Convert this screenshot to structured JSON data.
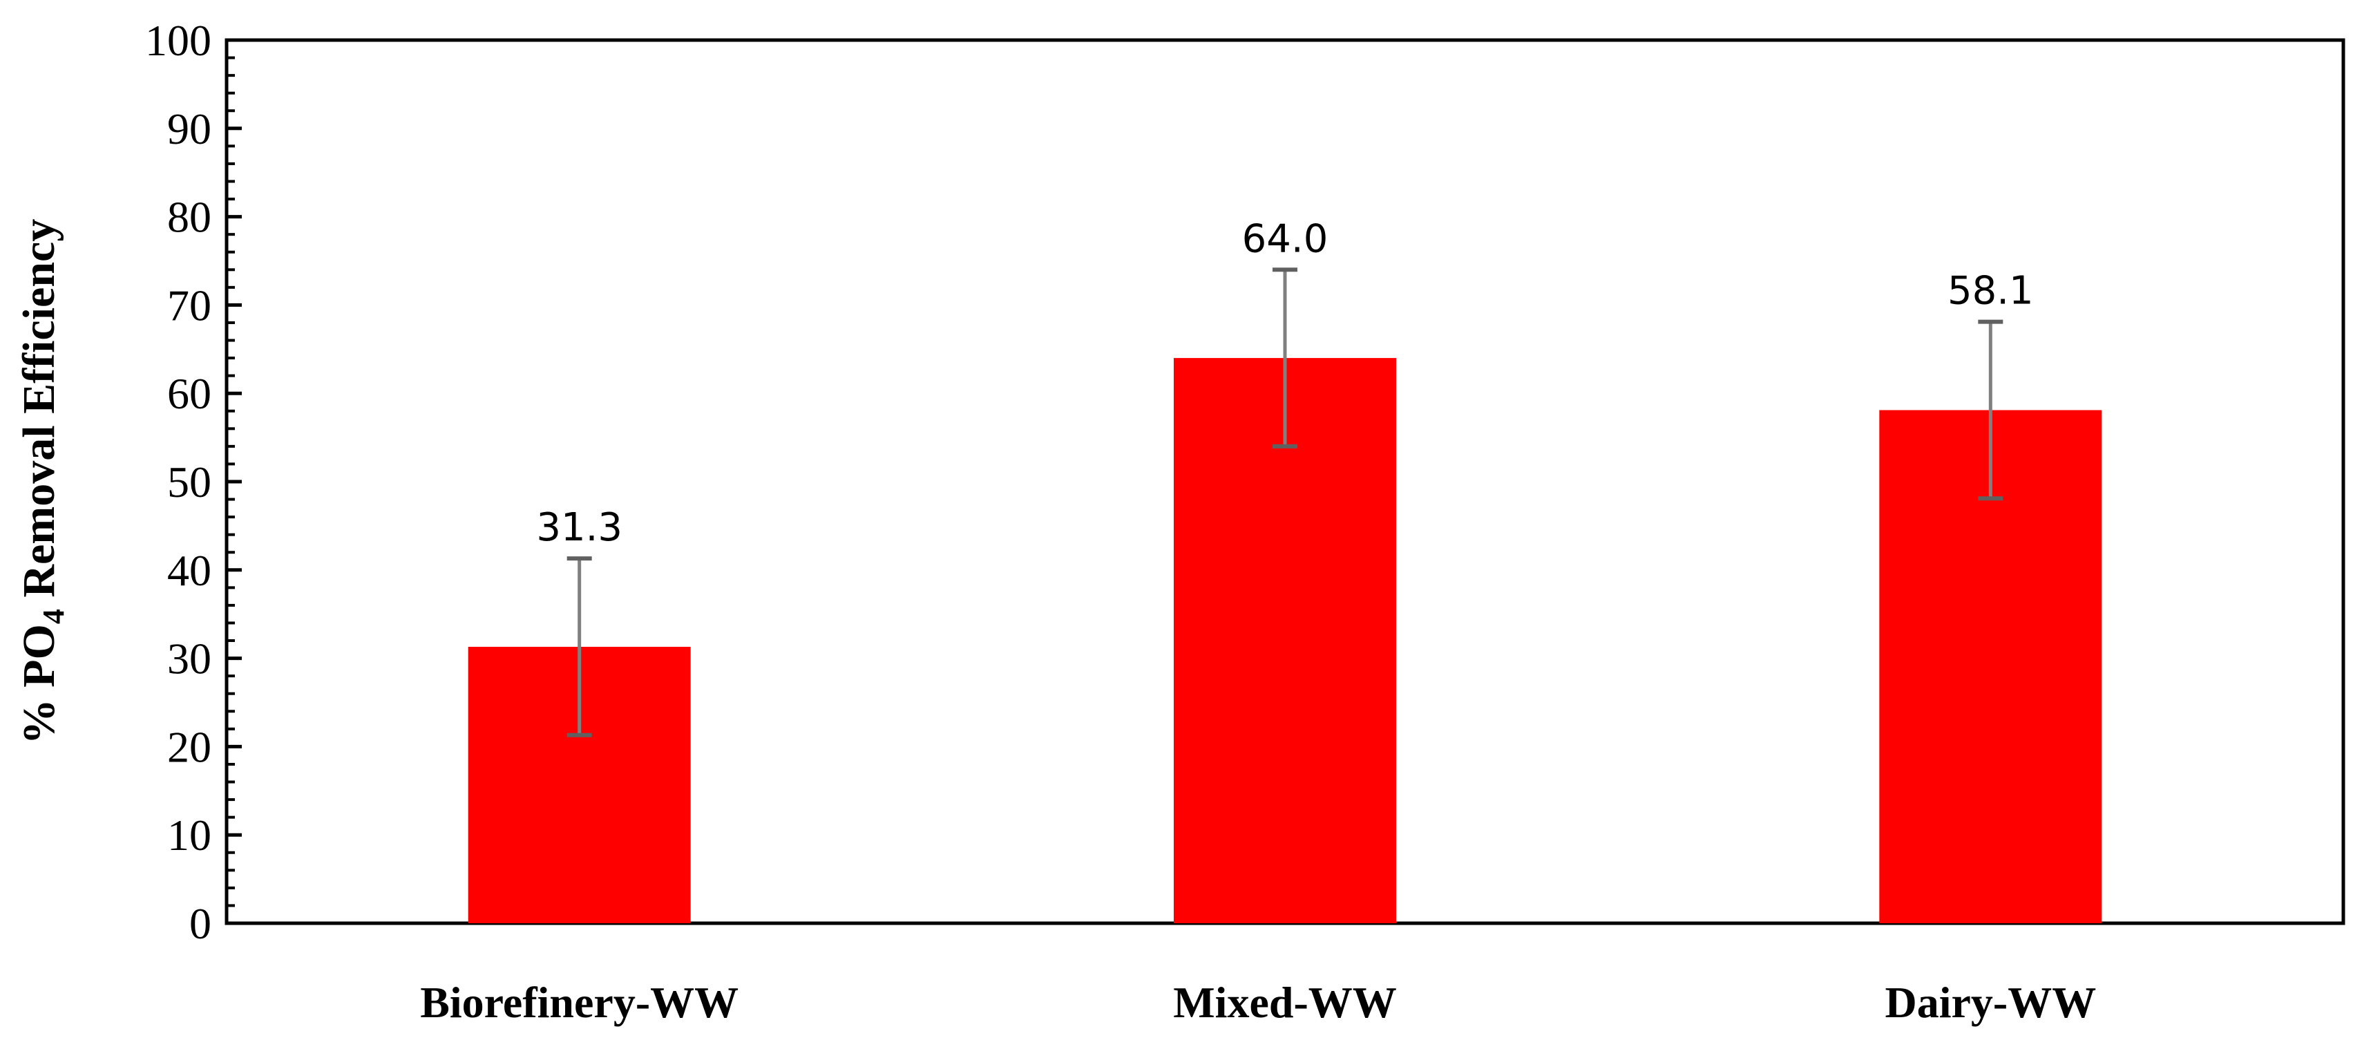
{
  "chart_data": {
    "type": "bar",
    "categories": [
      "Biorefinery-WW",
      "Mixed-WW",
      "Dairy-WW"
    ],
    "values": [
      31.3,
      64.0,
      58.1
    ],
    "data_labels": [
      "31.3",
      "64.0",
      "58.1"
    ],
    "error_bars": [
      10.0,
      10.0,
      10.0
    ],
    "title": "",
    "xlabel": "",
    "ylabel": {
      "prefix": "% PO",
      "subscript": "4",
      "suffix": " Removal Efficiency"
    },
    "ylim": [
      0,
      100
    ],
    "yticks": [
      0,
      10,
      20,
      30,
      40,
      50,
      60,
      70,
      80,
      90,
      100
    ],
    "ytick_labels": [
      "0",
      "10",
      "20",
      "30",
      "40",
      "50",
      "60",
      "70",
      "80",
      "90",
      "100"
    ],
    "grid": false,
    "legend": "none",
    "colors": {
      "bar": "#ff0000",
      "error_bar": "#808080",
      "axis": "#000000"
    }
  }
}
